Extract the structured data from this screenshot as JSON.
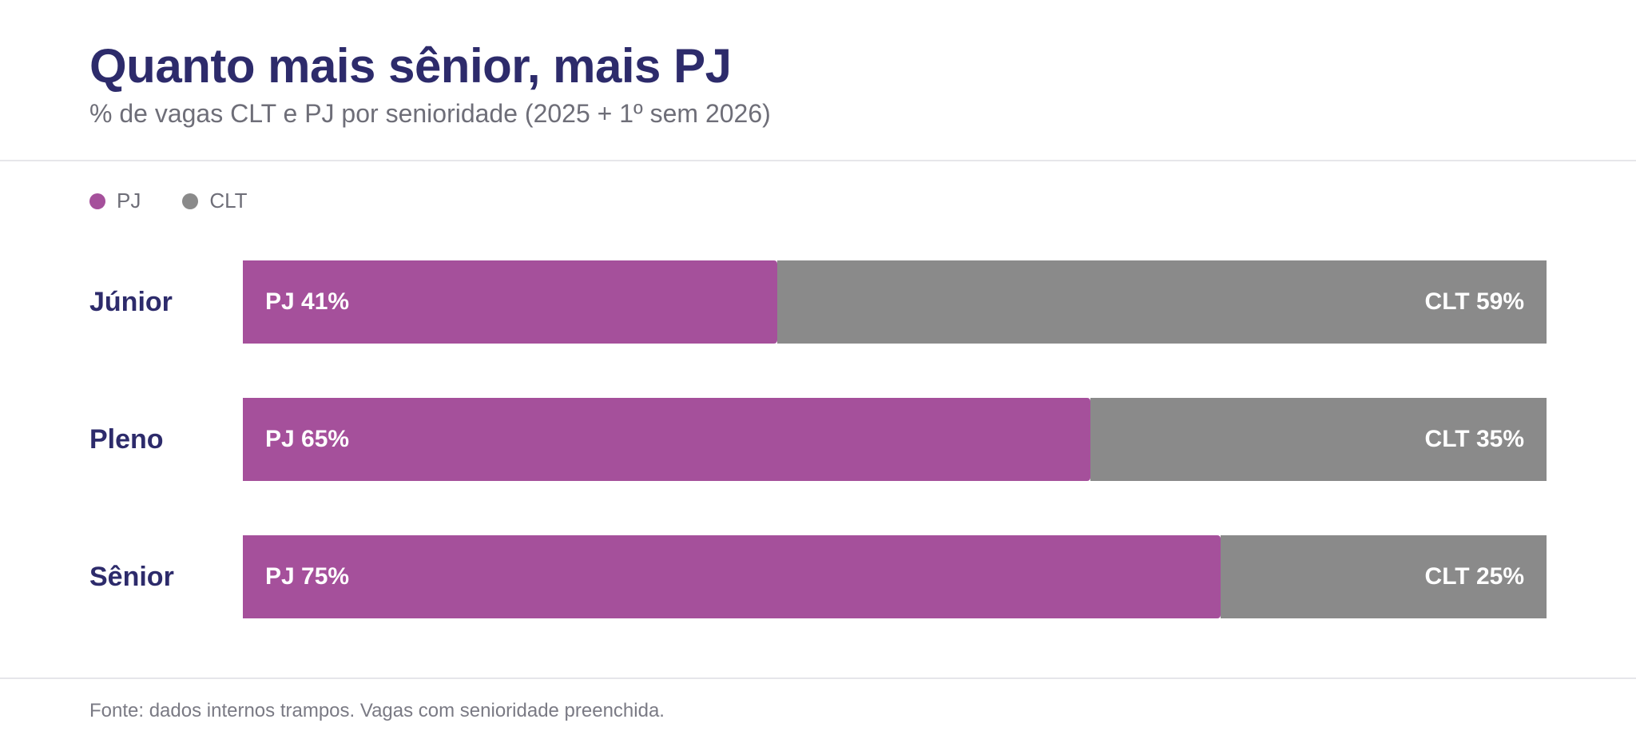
{
  "header": {
    "title": "Quanto mais sênior, mais PJ",
    "subtitle": "% de vagas CLT e PJ por senioridade (2025 + 1º sem 2026)"
  },
  "legend": {
    "items": [
      {
        "label": "PJ",
        "color": "#a5509b"
      },
      {
        "label": "CLT",
        "color": "#8a8a8a"
      }
    ]
  },
  "footer": {
    "source": "Fonte: dados internos trampos. Vagas com senioridade preenchida."
  },
  "chart_data": {
    "type": "bar",
    "orientation": "horizontal",
    "stacked": true,
    "title": "Quanto mais sênior, mais PJ",
    "subtitle": "% de vagas CLT e PJ por senioridade (2025 + 1º sem 2026)",
    "categories": [
      "Júnior",
      "Pleno",
      "Sênior"
    ],
    "series": [
      {
        "name": "PJ",
        "color": "#a5509b",
        "values": [
          41,
          65,
          75
        ],
        "labels": [
          "PJ 41%",
          "PJ 65%",
          "PJ 75%"
        ]
      },
      {
        "name": "CLT",
        "color": "#8a8a8a",
        "values": [
          59,
          35,
          25
        ],
        "labels": [
          "CLT 59%",
          "CLT 35%",
          "CLT 25%"
        ]
      }
    ],
    "xlim": [
      0,
      100
    ],
    "unit": "%",
    "legend_position": "top-left",
    "grid": false
  }
}
